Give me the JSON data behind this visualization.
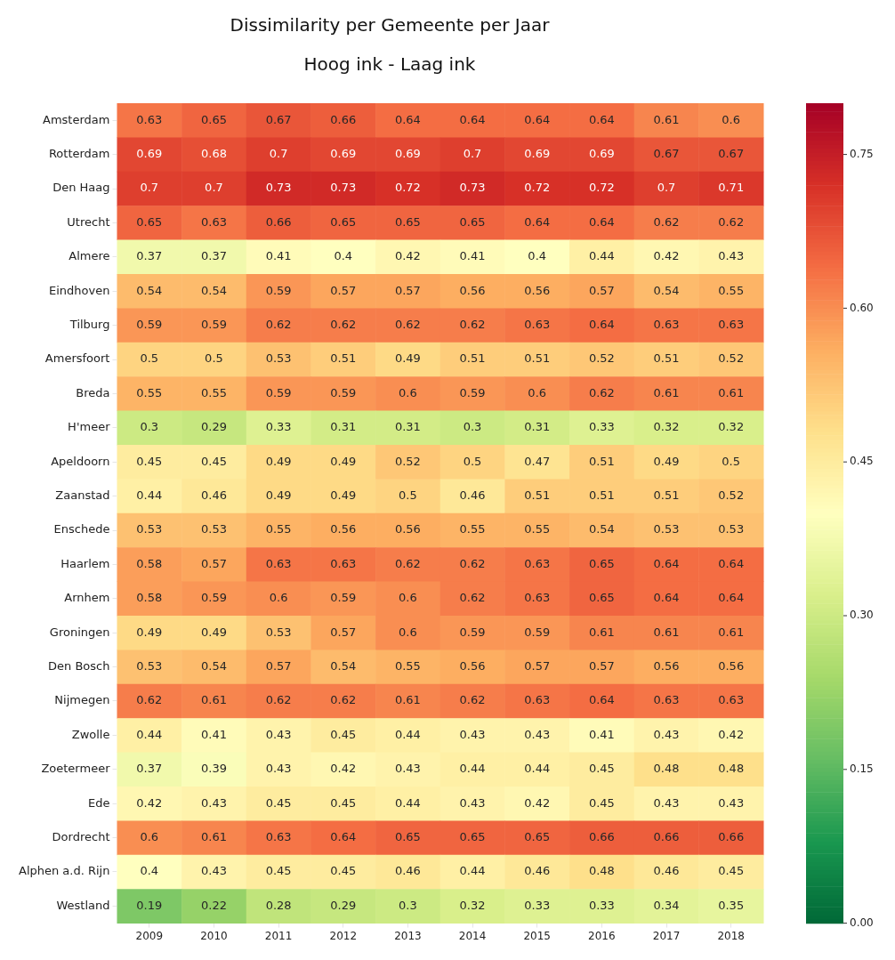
{
  "chart_data": {
    "type": "heatmap",
    "title": "Dissimilarity per Gemeente per Jaar",
    "subtitle": "Hoog ink - Laag ink",
    "categories": [
      "2009",
      "2010",
      "2011",
      "2012",
      "2013",
      "2014",
      "2015",
      "2016",
      "2017",
      "2018"
    ],
    "y_categories": [
      "Amsterdam",
      "Rotterdam",
      "Den Haag",
      "Utrecht",
      "Almere",
      "Eindhoven",
      "Tilburg",
      "Amersfoort",
      "Breda",
      "H'meer",
      "Apeldoorn",
      "Zaanstad",
      "Enschede",
      "Haarlem",
      "Arnhem",
      "Groningen",
      "Den Bosch",
      "Nijmegen",
      "Zwolle",
      "Zoetermeer",
      "Ede",
      "Dordrecht",
      "Alphen a.d. Rijn",
      "Westland"
    ],
    "cells": [
      [
        0.63,
        0.65,
        0.67,
        0.66,
        0.64,
        0.64,
        0.64,
        0.64,
        0.61,
        0.6
      ],
      [
        0.69,
        0.68,
        0.7,
        0.69,
        0.69,
        0.7,
        0.69,
        0.69,
        0.67,
        0.67
      ],
      [
        0.7,
        0.7,
        0.73,
        0.73,
        0.72,
        0.73,
        0.72,
        0.72,
        0.7,
        0.71
      ],
      [
        0.65,
        0.63,
        0.66,
        0.65,
        0.65,
        0.65,
        0.64,
        0.64,
        0.62,
        0.62
      ],
      [
        0.37,
        0.37,
        0.41,
        0.4,
        0.42,
        0.41,
        0.4,
        0.44,
        0.42,
        0.43
      ],
      [
        0.54,
        0.54,
        0.59,
        0.57,
        0.57,
        0.56,
        0.56,
        0.57,
        0.54,
        0.55
      ],
      [
        0.59,
        0.59,
        0.62,
        0.62,
        0.62,
        0.62,
        0.63,
        0.64,
        0.63,
        0.63
      ],
      [
        0.5,
        0.5,
        0.53,
        0.51,
        0.49,
        0.51,
        0.51,
        0.52,
        0.51,
        0.52
      ],
      [
        0.55,
        0.55,
        0.59,
        0.59,
        0.6,
        0.59,
        0.6,
        0.62,
        0.61,
        0.61
      ],
      [
        0.3,
        0.29,
        0.33,
        0.31,
        0.31,
        0.3,
        0.31,
        0.33,
        0.32,
        0.32
      ],
      [
        0.45,
        0.45,
        0.49,
        0.49,
        0.52,
        0.5,
        0.47,
        0.51,
        0.49,
        0.5
      ],
      [
        0.44,
        0.46,
        0.49,
        0.49,
        0.5,
        0.46,
        0.51,
        0.51,
        0.51,
        0.52
      ],
      [
        0.53,
        0.53,
        0.55,
        0.56,
        0.56,
        0.55,
        0.55,
        0.54,
        0.53,
        0.53
      ],
      [
        0.58,
        0.57,
        0.63,
        0.63,
        0.62,
        0.62,
        0.63,
        0.65,
        0.64,
        0.64
      ],
      [
        0.58,
        0.59,
        0.6,
        0.59,
        0.6,
        0.62,
        0.63,
        0.65,
        0.64,
        0.64
      ],
      [
        0.49,
        0.49,
        0.53,
        0.57,
        0.6,
        0.59,
        0.59,
        0.61,
        0.61,
        0.61
      ],
      [
        0.53,
        0.54,
        0.57,
        0.54,
        0.55,
        0.56,
        0.57,
        0.57,
        0.56,
        0.56
      ],
      [
        0.62,
        0.61,
        0.62,
        0.62,
        0.61,
        0.62,
        0.63,
        0.64,
        0.63,
        0.63
      ],
      [
        0.44,
        0.41,
        0.43,
        0.45,
        0.44,
        0.43,
        0.43,
        0.41,
        0.43,
        0.42
      ],
      [
        0.37,
        0.39,
        0.43,
        0.42,
        0.43,
        0.44,
        0.44,
        0.45,
        0.48,
        0.48
      ],
      [
        0.42,
        0.43,
        0.45,
        0.45,
        0.44,
        0.43,
        0.42,
        0.45,
        0.43,
        0.43
      ],
      [
        0.6,
        0.61,
        0.63,
        0.64,
        0.65,
        0.65,
        0.65,
        0.66,
        0.66,
        0.66
      ],
      [
        0.4,
        0.43,
        0.45,
        0.45,
        0.46,
        0.44,
        0.46,
        0.48,
        0.46,
        0.45
      ],
      [
        0.19,
        0.22,
        0.28,
        0.29,
        0.3,
        0.32,
        0.33,
        0.33,
        0.34,
        0.35
      ]
    ],
    "clim": [
      0,
      0.8
    ],
    "cticks": [
      {
        "value": 0,
        "label": "0.00"
      },
      0.15,
      {
        "value": 0.3,
        "label": "0.30"
      },
      0.45,
      {
        "value": 0.6,
        "label": "0.60"
      },
      0.75
    ],
    "data_labels": true
  }
}
